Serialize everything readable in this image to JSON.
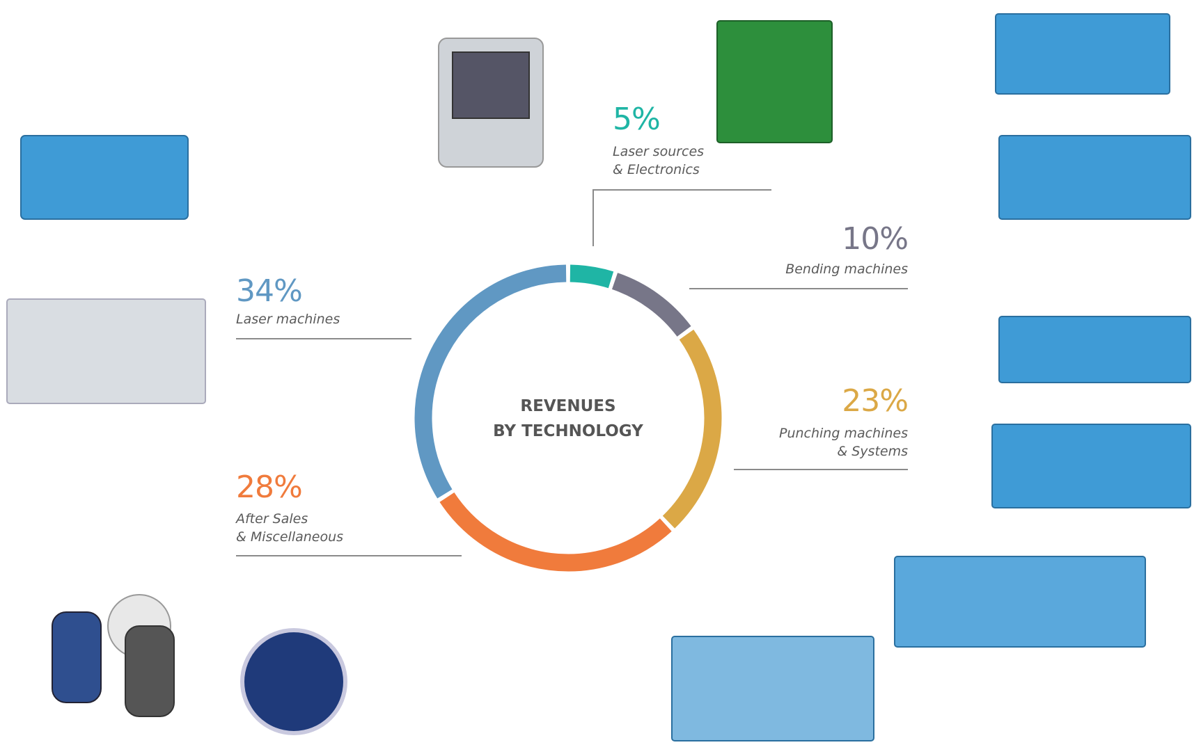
{
  "chart_data": {
    "type": "donut",
    "title": "REVENUES\nBY TECHNOLOGY",
    "categories": [
      "Laser sources\n& Electronics",
      "Bending machines",
      "Punching machines\n& Systems",
      "After Sales\n& Miscellaneous",
      "Laser machines"
    ],
    "values": [
      5,
      10,
      23,
      28,
      34
    ],
    "value_labels": [
      "5%",
      "10%",
      "23%",
      "28%",
      "34%"
    ],
    "colors": [
      "#1fb5a5",
      "#777688",
      "#dba846",
      "#f07b3c",
      "#6098c3"
    ]
  }
}
